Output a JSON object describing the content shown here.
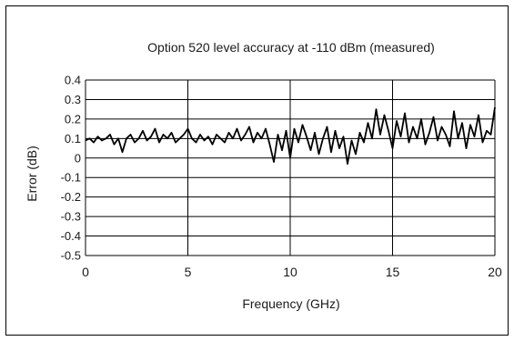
{
  "chart_data": {
    "type": "line",
    "title": "Option 520 level accuracy at -110 dBm (measured)",
    "xlabel": "Frequency (GHz)",
    "ylabel": "Error (dB)",
    "xlim": [
      0,
      20
    ],
    "ylim": [
      -0.5,
      0.4
    ],
    "xticks": [
      0,
      5,
      10,
      15,
      20
    ],
    "xtick_labels": [
      "0",
      "5",
      "10",
      "15",
      "20"
    ],
    "yticks": [
      0.4,
      0.3,
      0.2,
      0.1,
      0,
      -0.1,
      -0.2,
      -0.3,
      -0.4,
      -0.5
    ],
    "ytick_labels": [
      "0.4",
      "0.3",
      "0.2",
      "0.1",
      "0",
      "-0.1",
      "-0.2",
      "-0.3",
      "-0.4",
      "-0.5"
    ],
    "grid": "horizontal lines at every y tick, vertical lines at every x tick",
    "line_color": "#000000",
    "series": [
      {
        "x": [
          0,
          0.2,
          0.4,
          0.6,
          0.8,
          1.0,
          1.2,
          1.4,
          1.6,
          1.8,
          2.0,
          2.2,
          2.4,
          2.6,
          2.8,
          3.0,
          3.2,
          3.4,
          3.6,
          3.8,
          4.0,
          4.2,
          4.4,
          4.6,
          4.8,
          5.0,
          5.2,
          5.4,
          5.6,
          5.8,
          6.0,
          6.2,
          6.4,
          6.6,
          6.8,
          7.0,
          7.2,
          7.4,
          7.6,
          7.8,
          8.0,
          8.2,
          8.4,
          8.6,
          8.8,
          9.0,
          9.2,
          9.4,
          9.6,
          9.8,
          10.0,
          10.2,
          10.4,
          10.6,
          10.8,
          11.0,
          11.2,
          11.4,
          11.6,
          11.8,
          12.0,
          12.2,
          12.4,
          12.6,
          12.8,
          13.0,
          13.2,
          13.4,
          13.6,
          13.8,
          14.0,
          14.2,
          14.4,
          14.6,
          14.8,
          15.0,
          15.2,
          15.4,
          15.6,
          15.8,
          16.0,
          16.2,
          16.4,
          16.6,
          16.8,
          17.0,
          17.2,
          17.4,
          17.6,
          17.8,
          18.0,
          18.2,
          18.4,
          18.6,
          18.8,
          19.0,
          19.2,
          19.4,
          19.6,
          19.8,
          20.0
        ],
        "y": [
          0.09,
          0.1,
          0.08,
          0.11,
          0.09,
          0.1,
          0.12,
          0.07,
          0.1,
          0.03,
          0.1,
          0.12,
          0.08,
          0.1,
          0.14,
          0.09,
          0.11,
          0.15,
          0.08,
          0.12,
          0.1,
          0.13,
          0.08,
          0.1,
          0.12,
          0.15,
          0.1,
          0.08,
          0.12,
          0.09,
          0.11,
          0.07,
          0.12,
          0.1,
          0.08,
          0.13,
          0.1,
          0.15,
          0.09,
          0.12,
          0.16,
          0.08,
          0.13,
          0.1,
          0.15,
          0.07,
          -0.02,
          0.12,
          0.04,
          0.14,
          0.0,
          0.15,
          0.08,
          0.17,
          0.11,
          0.04,
          0.13,
          0.02,
          0.1,
          0.16,
          0.03,
          0.14,
          0.05,
          0.11,
          -0.03,
          0.09,
          0.02,
          0.13,
          0.08,
          0.18,
          0.1,
          0.25,
          0.12,
          0.22,
          0.14,
          0.05,
          0.19,
          0.11,
          0.23,
          0.08,
          0.16,
          0.1,
          0.2,
          0.07,
          0.13,
          0.21,
          0.09,
          0.16,
          0.12,
          0.06,
          0.24,
          0.1,
          0.18,
          0.05,
          0.17,
          0.11,
          0.22,
          0.08,
          0.14,
          0.12,
          0.26
        ]
      }
    ]
  }
}
